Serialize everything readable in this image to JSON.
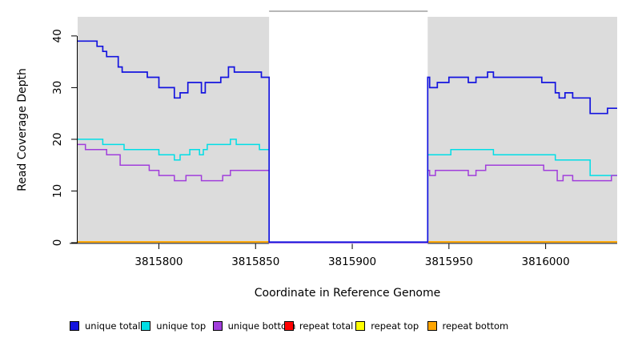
{
  "chart_data": {
    "type": "line",
    "subtype": "step-coverage-plot",
    "title": "",
    "xlabel": "Coordinate in Reference Genome",
    "ylabel": "Read Coverage Depth",
    "xlim": [
      3815758,
      3816037
    ],
    "ylim": [
      0,
      43.7
    ],
    "x_ticks": [
      3815800,
      3815850,
      3815900,
      3815950,
      3816000
    ],
    "y_ticks": [
      0,
      10,
      20,
      30,
      40
    ],
    "grid": "off",
    "plot_bg_color": "#DCDCDC",
    "gap_region": {
      "start": 3815857,
      "end": 3815939,
      "fill": "#FFFFFF",
      "border": "#8C8C8C"
    },
    "legend_position": "bottom",
    "legend": [
      {
        "label": "unique total",
        "color": "#1414DF"
      },
      {
        "label": "unique top",
        "color": "#00DEE6"
      },
      {
        "label": "unique bottom",
        "color": "#A13EDB"
      },
      {
        "label": "repeat total",
        "color": "#FF0000"
      },
      {
        "label": "repeat top",
        "color": "#FFFF00"
      },
      {
        "label": "repeat bottom",
        "color": "#FFA500"
      }
    ],
    "series": [
      {
        "name": "unique total",
        "color": "#1414DF",
        "width": 1.7,
        "points": [
          [
            3815758,
            39
          ],
          [
            3815768,
            38
          ],
          [
            3815771,
            37
          ],
          [
            3815773,
            36
          ],
          [
            3815779,
            34
          ],
          [
            3815781,
            33
          ],
          [
            3815794,
            32
          ],
          [
            3815800,
            30
          ],
          [
            3815808,
            28
          ],
          [
            3815811,
            29
          ],
          [
            3815815,
            31
          ],
          [
            3815822,
            29
          ],
          [
            3815824,
            31
          ],
          [
            3815832,
            32
          ],
          [
            3815836,
            34
          ],
          [
            3815839,
            33
          ],
          [
            3815853,
            32
          ],
          [
            3815857,
            0
          ],
          [
            3815939,
            32
          ],
          [
            3815940,
            30
          ],
          [
            3815944,
            31
          ],
          [
            3815950,
            32
          ],
          [
            3815960,
            31
          ],
          [
            3815964,
            32
          ],
          [
            3815970,
            33
          ],
          [
            3815973,
            32
          ],
          [
            3815998,
            31
          ],
          [
            3816005,
            29
          ],
          [
            3816007,
            28
          ],
          [
            3816010,
            29
          ],
          [
            3816014,
            28
          ],
          [
            3816023,
            25
          ],
          [
            3816032,
            26
          ]
        ]
      },
      {
        "name": "unique top",
        "color": "#00DEE6",
        "width": 1.5,
        "points": [
          [
            3815758,
            20
          ],
          [
            3815771,
            19
          ],
          [
            3815782,
            18
          ],
          [
            3815800,
            17
          ],
          [
            3815808,
            16
          ],
          [
            3815811,
            17
          ],
          [
            3815816,
            18
          ],
          [
            3815821,
            17
          ],
          [
            3815823,
            18
          ],
          [
            3815825,
            19
          ],
          [
            3815837,
            20
          ],
          [
            3815840,
            19
          ],
          [
            3815852,
            18
          ],
          [
            3815857,
            0
          ],
          [
            3815939,
            17
          ],
          [
            3815951,
            18
          ],
          [
            3815973,
            17
          ],
          [
            3816005,
            16
          ],
          [
            3816023,
            13
          ]
        ]
      },
      {
        "name": "unique bottom",
        "color": "#A13EDB",
        "width": 1.5,
        "points": [
          [
            3815758,
            19
          ],
          [
            3815762,
            18
          ],
          [
            3815773,
            17
          ],
          [
            3815780,
            15
          ],
          [
            3815795,
            14
          ],
          [
            3815800,
            13
          ],
          [
            3815808,
            12
          ],
          [
            3815814,
            13
          ],
          [
            3815822,
            12
          ],
          [
            3815833,
            13
          ],
          [
            3815837,
            14
          ],
          [
            3815857,
            0
          ],
          [
            3815939,
            14
          ],
          [
            3815940,
            13
          ],
          [
            3815943,
            14
          ],
          [
            3815960,
            13
          ],
          [
            3815964,
            14
          ],
          [
            3815969,
            15
          ],
          [
            3815999,
            14
          ],
          [
            3816006,
            12
          ],
          [
            3816009,
            13
          ],
          [
            3816014,
            12
          ],
          [
            3816034,
            13
          ]
        ]
      },
      {
        "name": "repeat total",
        "color": "#FF0000",
        "width": 1.8,
        "points": [
          [
            3815758,
            0
          ]
        ]
      },
      {
        "name": "repeat top",
        "color": "#FFFF00",
        "width": 1.8,
        "points": [
          [
            3815758,
            0
          ]
        ]
      },
      {
        "name": "repeat bottom",
        "color": "#FFA500",
        "width": 1.8,
        "points": [
          [
            3815758,
            0
          ]
        ]
      }
    ]
  }
}
